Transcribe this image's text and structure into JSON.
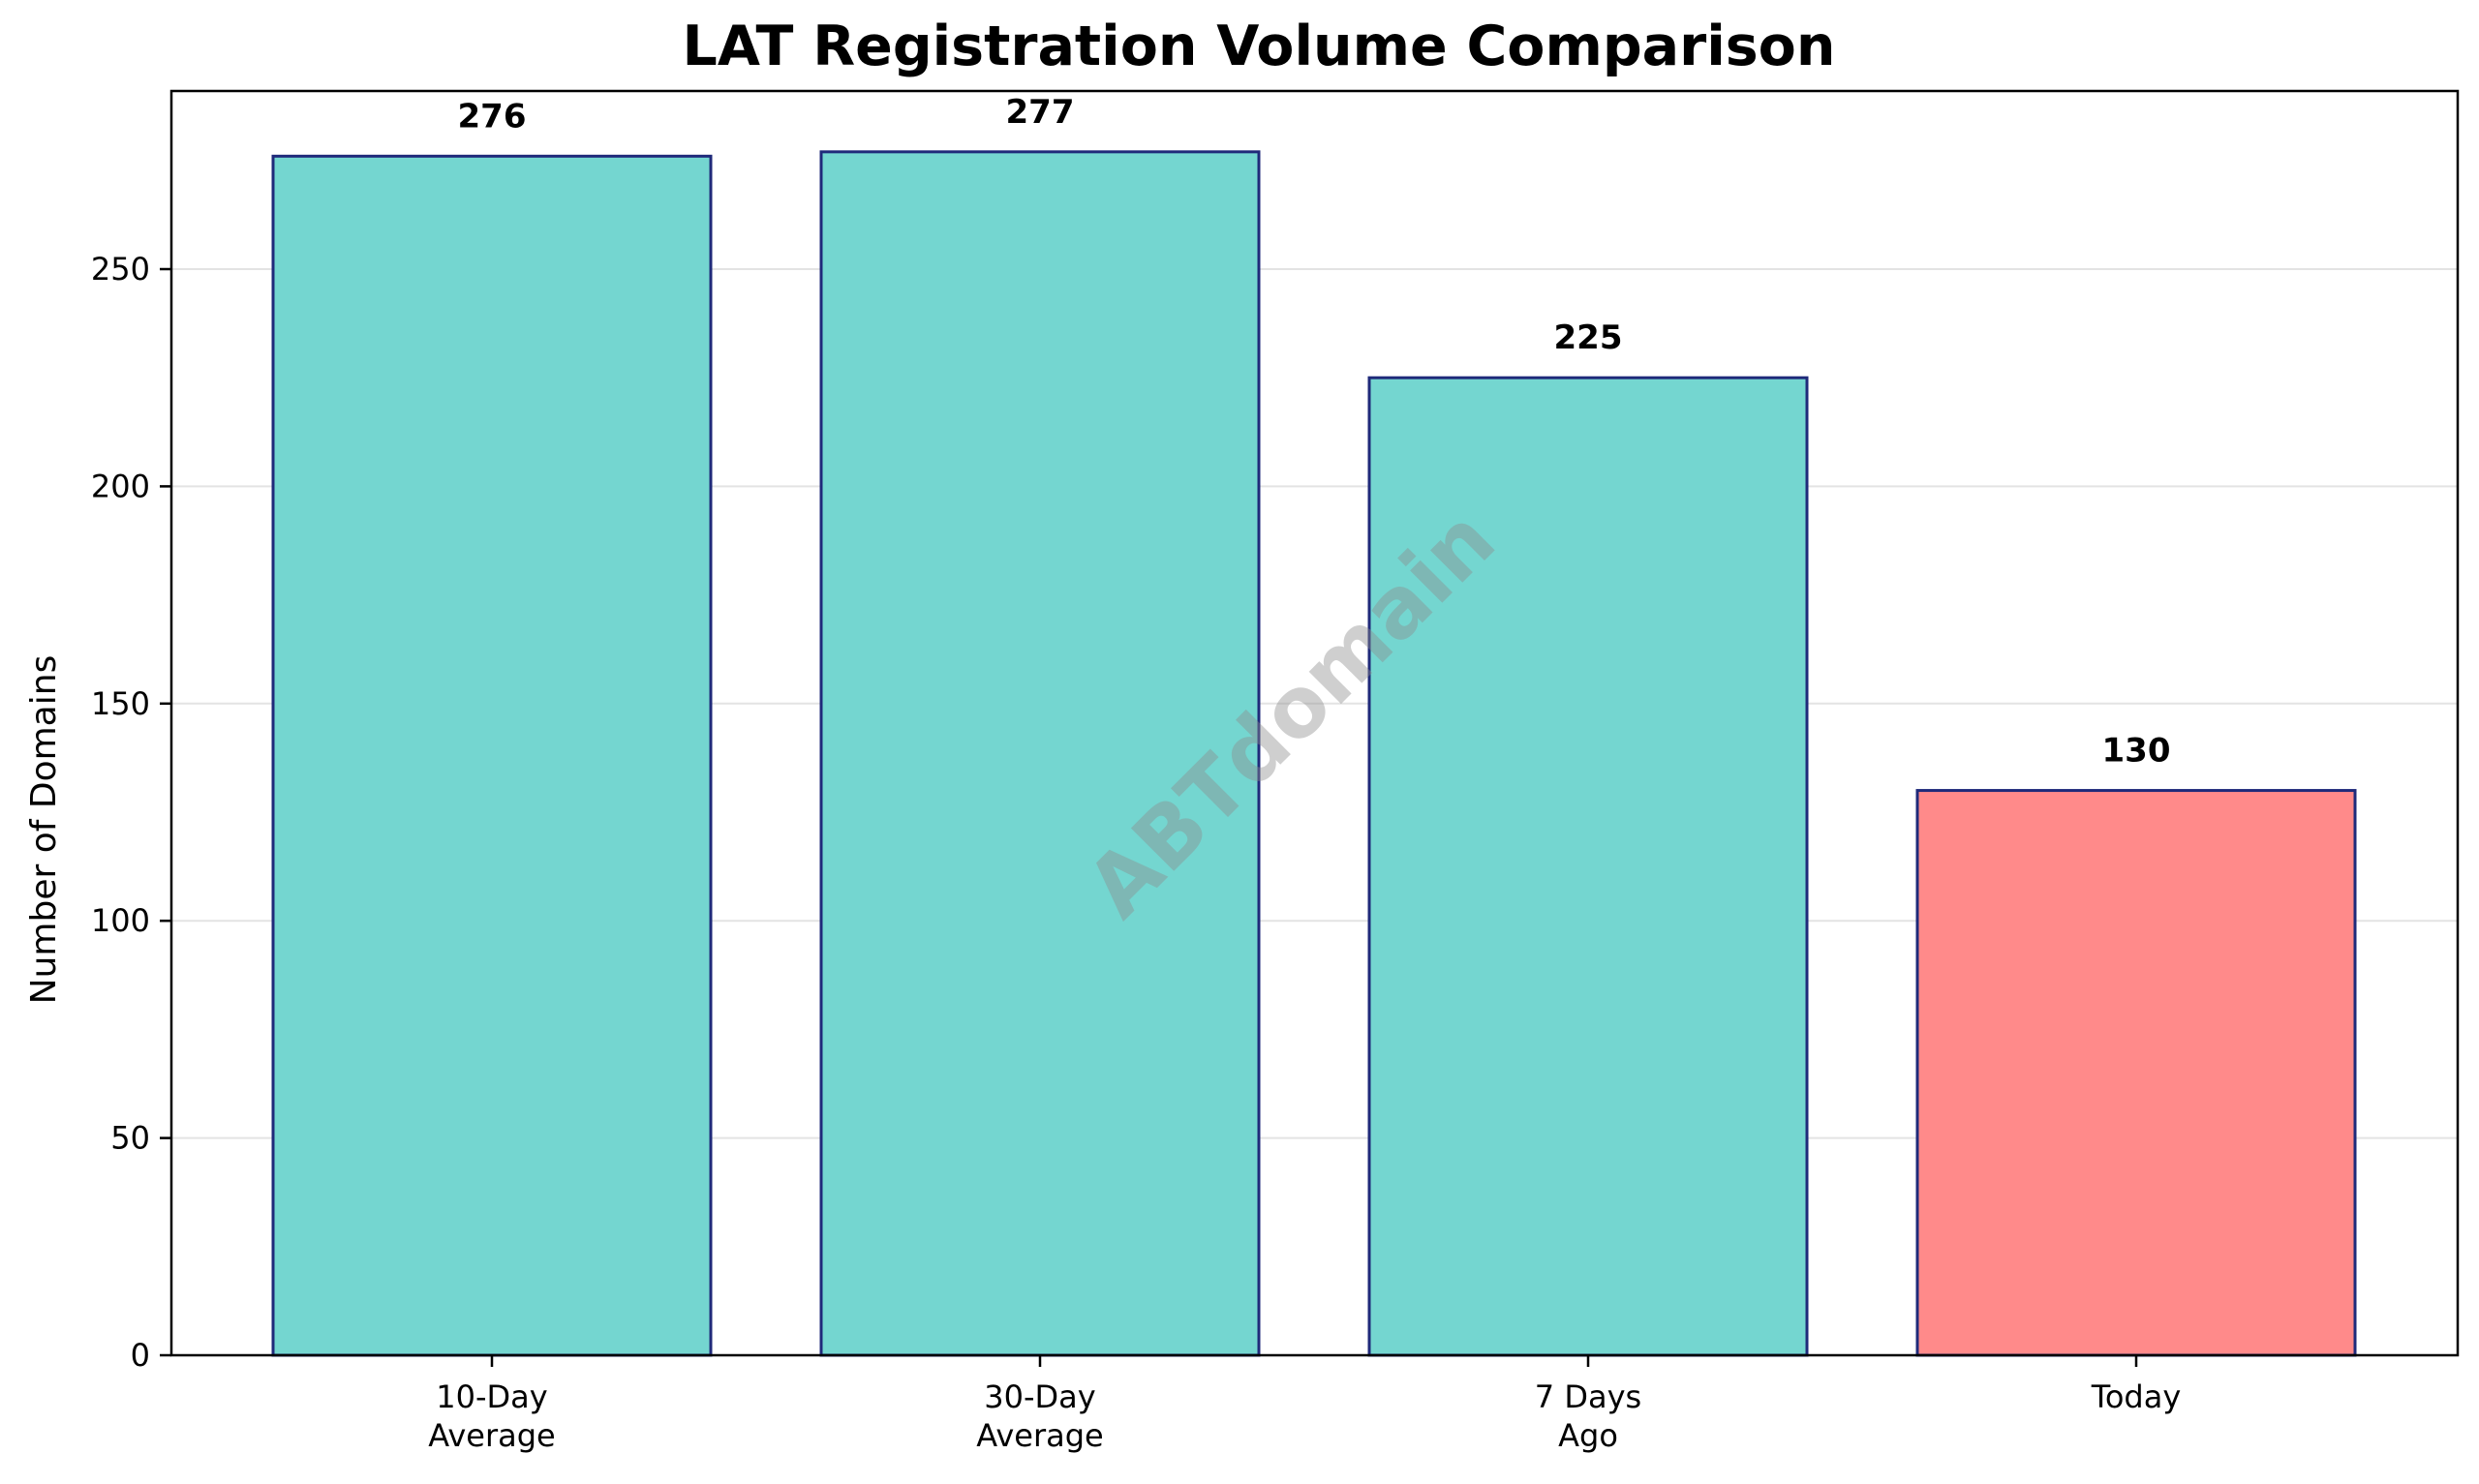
{
  "chart_data": {
    "type": "bar",
    "title": "LAT Registration Volume Comparison",
    "xlabel": "",
    "ylabel": "Number of Domains",
    "categories": [
      [
        "10-Day",
        "Average"
      ],
      [
        "30-Day",
        "Average"
      ],
      [
        "7 Days",
        "Ago"
      ],
      [
        "Today"
      ]
    ],
    "values": [
      276,
      277,
      225,
      130
    ],
    "value_labels": [
      "276",
      "277",
      "225",
      "130"
    ],
    "bar_colors": [
      "#74d6d0",
      "#74d6d0",
      "#74d6d0",
      "#ff8a8a"
    ],
    "edge_color": "#1f2a7a",
    "ylim": [
      0,
      291
    ],
    "yticks": [
      0,
      50,
      100,
      150,
      200,
      250
    ],
    "grid": "y",
    "legend": "none",
    "watermark": "ABTdomain"
  }
}
